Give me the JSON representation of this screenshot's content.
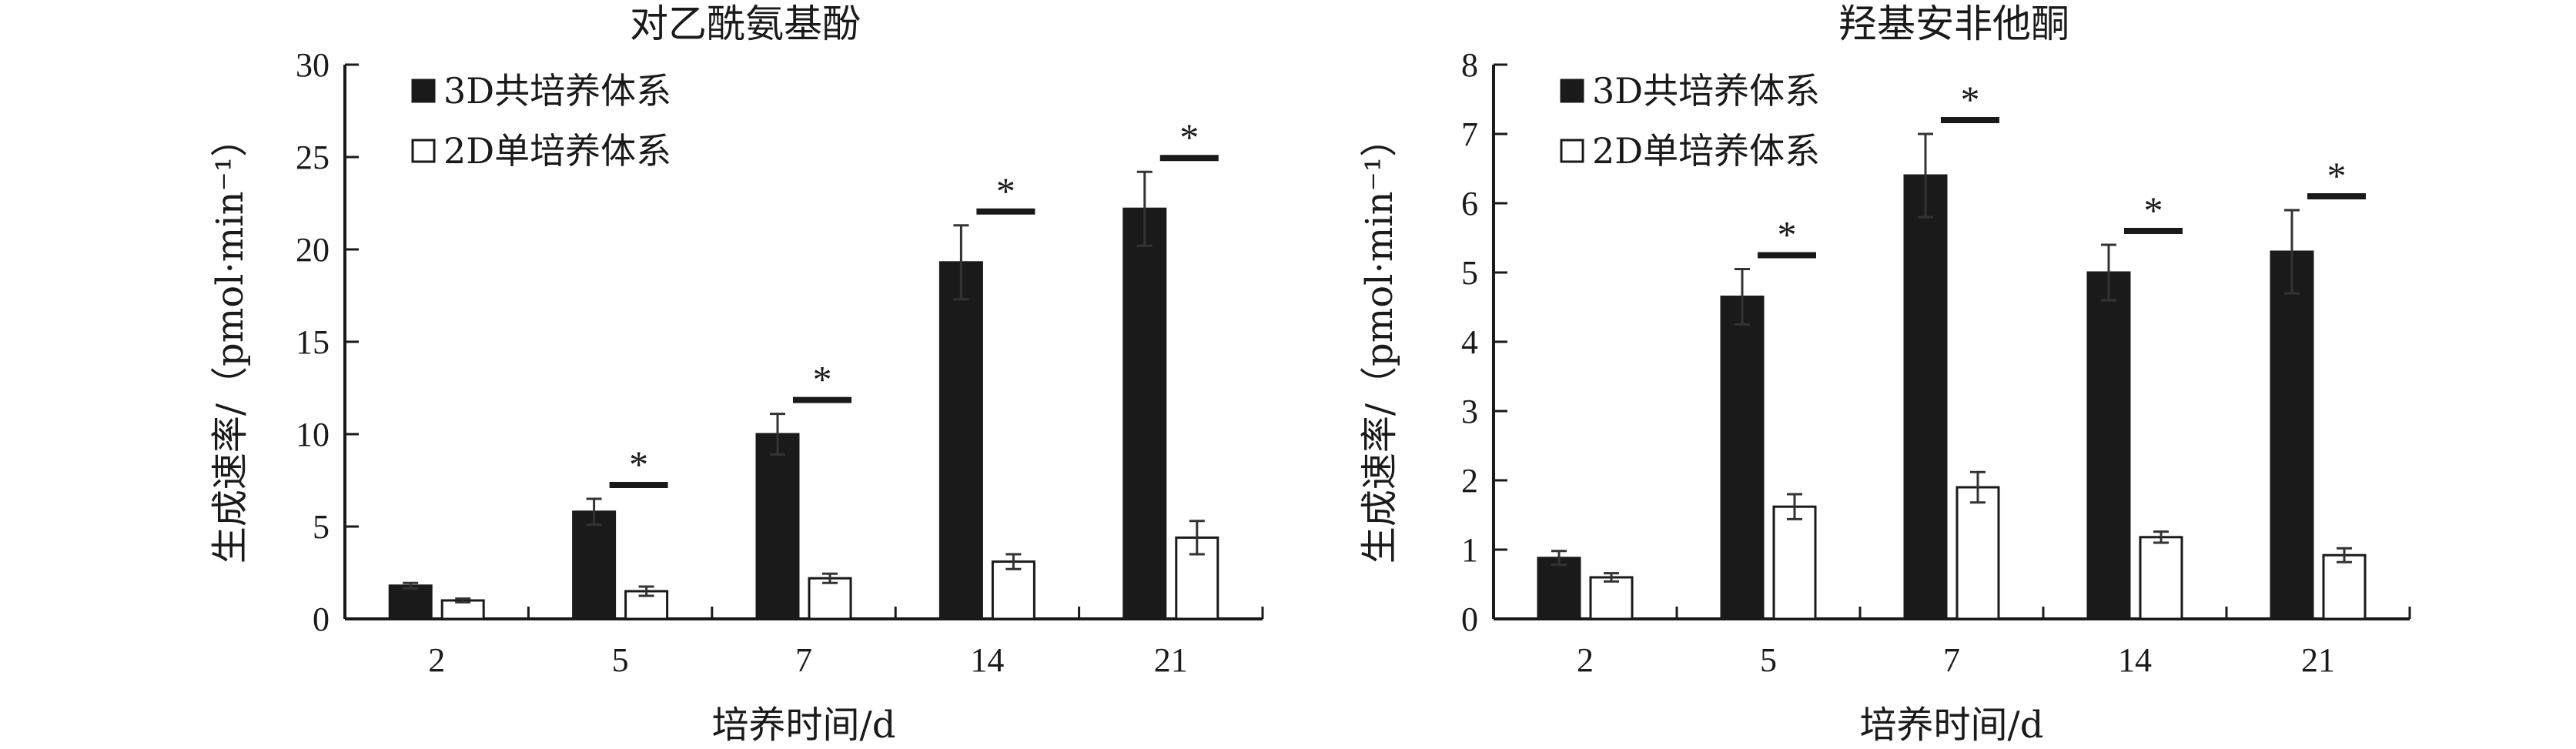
{
  "chart_data": [
    {
      "type": "bar",
      "title": "对乙酰氨基酚",
      "xlabel": "培养时间/d",
      "ylabel": "生成速率/（pmol·min⁻¹）",
      "categories": [
        "2",
        "5",
        "7",
        "14",
        "21"
      ],
      "ylim": [
        0,
        30
      ],
      "yticks": [
        0,
        5,
        10,
        15,
        20,
        25,
        30
      ],
      "legend_position": "top-left",
      "series": [
        {
          "name": "3D共培养体系",
          "color": "#1a1a1a",
          "values": [
            1.8,
            5.8,
            10.0,
            19.3,
            22.2
          ],
          "errors": [
            0.15,
            0.7,
            1.1,
            2.0,
            2.0
          ]
        },
        {
          "name": "2D单培养体系",
          "color": "#ffffff",
          "values": [
            1.0,
            1.5,
            2.2,
            3.1,
            4.4
          ],
          "errors": [
            0.1,
            0.25,
            0.25,
            0.4,
            0.9
          ]
        }
      ],
      "significance": [
        "",
        "*",
        "*",
        "*",
        "*"
      ]
    },
    {
      "type": "bar",
      "title": "羟基安非他酮",
      "xlabel": "培养时间/d",
      "ylabel": "生成速率/（pmol·min⁻¹）",
      "categories": [
        "2",
        "5",
        "7",
        "14",
        "21"
      ],
      "ylim": [
        0,
        8
      ],
      "yticks": [
        0,
        1,
        2,
        3,
        4,
        5,
        6,
        7,
        8
      ],
      "legend_position": "top-left",
      "series": [
        {
          "name": "3D共培养体系",
          "color": "#1a1a1a",
          "values": [
            0.88,
            4.65,
            6.4,
            5.0,
            5.3
          ],
          "errors": [
            0.1,
            0.4,
            0.6,
            0.4,
            0.6
          ]
        },
        {
          "name": "2D单培养体系",
          "color": "#ffffff",
          "values": [
            0.6,
            1.62,
            1.9,
            1.18,
            0.92
          ],
          "errors": [
            0.06,
            0.18,
            0.22,
            0.08,
            0.1
          ]
        }
      ],
      "significance": [
        "",
        "*",
        "*",
        "*",
        "*"
      ]
    }
  ]
}
